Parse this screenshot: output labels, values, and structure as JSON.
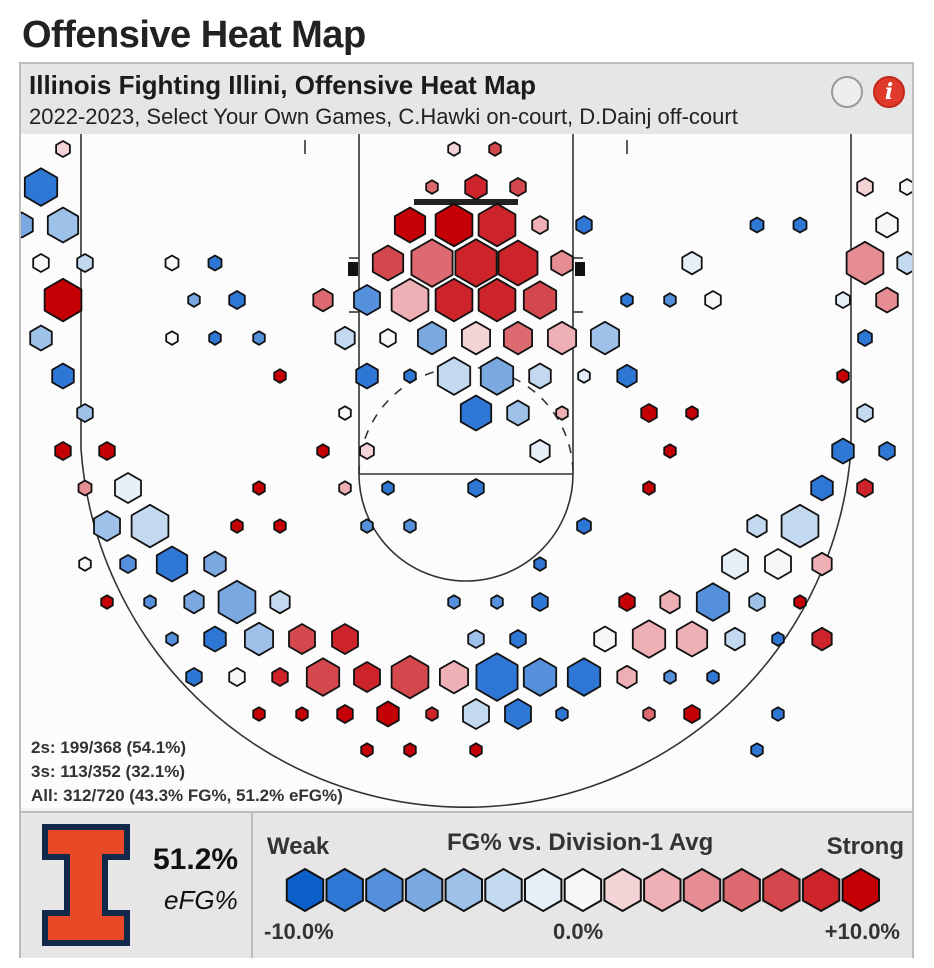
{
  "page_title": "Offensive Heat Map",
  "panel": {
    "title": "Illinois Fighting Illini, Offensive Heat Map",
    "subtitle": "2022-2023, Select Your Own Games, C.Hawki on-court, D.Dainj off-court"
  },
  "stats": {
    "twos": "2s: 199/368 (54.1%)",
    "threes": "3s: 113/352 (32.1%)",
    "all": "All: 312/720 (43.3% FG%, 51.2% eFG%)"
  },
  "summary": {
    "efg_value": "51.2%",
    "efg_label": "eFG%"
  },
  "legend": {
    "weak": "Weak",
    "strong": "Strong",
    "title": "FG% vs. Division-1 Avg",
    "min": "-10.0%",
    "mid": "0.0%",
    "max": "+10.0%",
    "colors": [
      "#0a5fc9",
      "#2f77d4",
      "#5490db",
      "#7aa9e2",
      "#9ec1e9",
      "#c3d9f0",
      "#e6eef8",
      "#f7f7f7",
      "#f3d3d6",
      "#eeb0b5",
      "#e58d93",
      "#dc6a70",
      "#d4474d",
      "#cc242a",
      "#c40006"
    ]
  },
  "chart_data": {
    "type": "heatmap",
    "title": "Illinois Fighting Illini, Offensive Heat Map",
    "value_meaning": "FG% vs. Division-1 Avg, color range -10.0% to +10.0%; hexagon size = shot volume",
    "rows": [
      {
        "y": 147,
        "cells": [
          {
            "x": 63,
            "s": 0.32,
            "c": 8
          },
          {
            "x": 454,
            "s": 0.27,
            "c": 8
          },
          {
            "x": 495,
            "s": 0.27,
            "c": 12
          }
        ]
      },
      {
        "y": 185,
        "cells": [
          {
            "x": 41,
            "s": 0.75,
            "c": 1
          },
          {
            "x": 432,
            "s": 0.27,
            "c": 11
          },
          {
            "x": 476,
            "s": 0.5,
            "c": 13
          },
          {
            "x": 518,
            "s": 0.36,
            "c": 12
          },
          {
            "x": 865,
            "s": 0.36,
            "c": 8
          },
          {
            "x": 907,
            "s": 0.32,
            "c": 7
          }
        ]
      },
      {
        "y": 223,
        "cells": [
          {
            "x": 22,
            "s": 0.5,
            "c": 3
          },
          {
            "x": 63,
            "s": 0.7,
            "c": 4
          },
          {
            "x": 410,
            "s": 0.7,
            "c": 14
          },
          {
            "x": 454,
            "s": 0.85,
            "c": 14
          },
          {
            "x": 497,
            "s": 0.85,
            "c": 13
          },
          {
            "x": 540,
            "s": 0.36,
            "c": 9
          },
          {
            "x": 584,
            "s": 0.36,
            "c": 1
          },
          {
            "x": 757,
            "s": 0.3,
            "c": 1
          },
          {
            "x": 800,
            "s": 0.3,
            "c": 1
          },
          {
            "x": 887,
            "s": 0.5,
            "c": 7
          }
        ]
      },
      {
        "y": 261,
        "cells": [
          {
            "x": 41,
            "s": 0.36,
            "c": 7
          },
          {
            "x": 85,
            "s": 0.36,
            "c": 5
          },
          {
            "x": 172,
            "s": 0.3,
            "c": 7
          },
          {
            "x": 215,
            "s": 0.3,
            "c": 1
          },
          {
            "x": 388,
            "s": 0.7,
            "c": 12
          },
          {
            "x": 432,
            "s": 0.95,
            "c": 11
          },
          {
            "x": 476,
            "s": 0.95,
            "c": 13
          },
          {
            "x": 518,
            "s": 0.9,
            "c": 13
          },
          {
            "x": 562,
            "s": 0.5,
            "c": 10
          },
          {
            "x": 692,
            "s": 0.45,
            "c": 6
          },
          {
            "x": 865,
            "s": 0.85,
            "c": 10
          },
          {
            "x": 907,
            "s": 0.45,
            "c": 5
          }
        ]
      },
      {
        "y": 298,
        "cells": [
          {
            "x": 63,
            "s": 0.85,
            "c": 14
          },
          {
            "x": 194,
            "s": 0.27,
            "c": 3
          },
          {
            "x": 237,
            "s": 0.36,
            "c": 1
          },
          {
            "x": 323,
            "s": 0.45,
            "c": 11
          },
          {
            "x": 367,
            "s": 0.6,
            "c": 2
          },
          {
            "x": 410,
            "s": 0.85,
            "c": 9
          },
          {
            "x": 454,
            "s": 0.85,
            "c": 13
          },
          {
            "x": 497,
            "s": 0.85,
            "c": 13
          },
          {
            "x": 540,
            "s": 0.75,
            "c": 12
          },
          {
            "x": 627,
            "s": 0.27,
            "c": 1
          },
          {
            "x": 670,
            "s": 0.27,
            "c": 2
          },
          {
            "x": 713,
            "s": 0.36,
            "c": 7
          },
          {
            "x": 843,
            "s": 0.32,
            "c": 6
          },
          {
            "x": 887,
            "s": 0.5,
            "c": 10
          }
        ]
      },
      {
        "y": 336,
        "cells": [
          {
            "x": 41,
            "s": 0.5,
            "c": 4
          },
          {
            "x": 172,
            "s": 0.27,
            "c": 7
          },
          {
            "x": 215,
            "s": 0.27,
            "c": 1
          },
          {
            "x": 259,
            "s": 0.27,
            "c": 2
          },
          {
            "x": 345,
            "s": 0.45,
            "c": 5
          },
          {
            "x": 388,
            "s": 0.36,
            "c": 7
          },
          {
            "x": 432,
            "s": 0.65,
            "c": 3
          },
          {
            "x": 476,
            "s": 0.65,
            "c": 8
          },
          {
            "x": 518,
            "s": 0.65,
            "c": 11
          },
          {
            "x": 562,
            "s": 0.65,
            "c": 9
          },
          {
            "x": 605,
            "s": 0.65,
            "c": 4
          },
          {
            "x": 865,
            "s": 0.32,
            "c": 1
          }
        ]
      },
      {
        "y": 374,
        "cells": [
          {
            "x": 63,
            "s": 0.5,
            "c": 1
          },
          {
            "x": 280,
            "s": 0.27,
            "c": 14
          },
          {
            "x": 367,
            "s": 0.5,
            "c": 1
          },
          {
            "x": 410,
            "s": 0.27,
            "c": 1
          },
          {
            "x": 454,
            "s": 0.75,
            "c": 5
          },
          {
            "x": 497,
            "s": 0.75,
            "c": 3
          },
          {
            "x": 540,
            "s": 0.5,
            "c": 5
          },
          {
            "x": 584,
            "s": 0.27,
            "c": 6
          },
          {
            "x": 627,
            "s": 0.45,
            "c": 1
          },
          {
            "x": 843,
            "s": 0.27,
            "c": 14
          }
        ]
      },
      {
        "y": 411,
        "cells": [
          {
            "x": 85,
            "s": 0.36,
            "c": 4
          },
          {
            "x": 345,
            "s": 0.27,
            "c": 7
          },
          {
            "x": 476,
            "s": 0.7,
            "c": 1
          },
          {
            "x": 518,
            "s": 0.5,
            "c": 4
          },
          {
            "x": 562,
            "s": 0.27,
            "c": 9
          },
          {
            "x": 649,
            "s": 0.36,
            "c": 14
          },
          {
            "x": 692,
            "s": 0.27,
            "c": 14
          },
          {
            "x": 865,
            "s": 0.36,
            "c": 5
          }
        ]
      },
      {
        "y": 449,
        "cells": [
          {
            "x": 63,
            "s": 0.36,
            "c": 14
          },
          {
            "x": 107,
            "s": 0.36,
            "c": 14
          },
          {
            "x": 323,
            "s": 0.27,
            "c": 14
          },
          {
            "x": 367,
            "s": 0.32,
            "c": 8
          },
          {
            "x": 540,
            "s": 0.45,
            "c": 6
          },
          {
            "x": 670,
            "s": 0.27,
            "c": 14
          },
          {
            "x": 843,
            "s": 0.5,
            "c": 1
          },
          {
            "x": 887,
            "s": 0.36,
            "c": 1
          }
        ]
      },
      {
        "y": 486,
        "cells": [
          {
            "x": 85,
            "s": 0.3,
            "c": 10
          },
          {
            "x": 128,
            "s": 0.6,
            "c": 6
          },
          {
            "x": 259,
            "s": 0.27,
            "c": 14
          },
          {
            "x": 345,
            "s": 0.27,
            "c": 9
          },
          {
            "x": 388,
            "s": 0.27,
            "c": 1
          },
          {
            "x": 476,
            "s": 0.36,
            "c": 1
          },
          {
            "x": 649,
            "s": 0.27,
            "c": 14
          },
          {
            "x": 822,
            "s": 0.5,
            "c": 1
          },
          {
            "x": 865,
            "s": 0.36,
            "c": 13
          }
        ]
      },
      {
        "y": 524,
        "cells": [
          {
            "x": 107,
            "s": 0.6,
            "c": 4
          },
          {
            "x": 150,
            "s": 0.85,
            "c": 5
          },
          {
            "x": 237,
            "s": 0.27,
            "c": 14
          },
          {
            "x": 280,
            "s": 0.27,
            "c": 14
          },
          {
            "x": 367,
            "s": 0.27,
            "c": 2
          },
          {
            "x": 410,
            "s": 0.27,
            "c": 2
          },
          {
            "x": 584,
            "s": 0.32,
            "c": 1
          },
          {
            "x": 757,
            "s": 0.45,
            "c": 5
          },
          {
            "x": 800,
            "s": 0.85,
            "c": 5
          }
        ]
      },
      {
        "y": 562,
        "cells": [
          {
            "x": 85,
            "s": 0.27,
            "c": 7
          },
          {
            "x": 128,
            "s": 0.36,
            "c": 2
          },
          {
            "x": 172,
            "s": 0.7,
            "c": 1
          },
          {
            "x": 215,
            "s": 0.5,
            "c": 3
          },
          {
            "x": 540,
            "s": 0.27,
            "c": 1
          },
          {
            "x": 735,
            "s": 0.6,
            "c": 6
          },
          {
            "x": 778,
            "s": 0.6,
            "c": 7
          },
          {
            "x": 822,
            "s": 0.45,
            "c": 9
          }
        ]
      },
      {
        "y": 600,
        "cells": [
          {
            "x": 107,
            "s": 0.27,
            "c": 14
          },
          {
            "x": 150,
            "s": 0.27,
            "c": 2
          },
          {
            "x": 194,
            "s": 0.45,
            "c": 3
          },
          {
            "x": 237,
            "s": 0.85,
            "c": 3
          },
          {
            "x": 280,
            "s": 0.45,
            "c": 5
          },
          {
            "x": 454,
            "s": 0.27,
            "c": 2
          },
          {
            "x": 497,
            "s": 0.27,
            "c": 2
          },
          {
            "x": 540,
            "s": 0.36,
            "c": 1
          },
          {
            "x": 627,
            "s": 0.36,
            "c": 14
          },
          {
            "x": 670,
            "s": 0.45,
            "c": 9
          },
          {
            "x": 713,
            "s": 0.75,
            "c": 2
          },
          {
            "x": 757,
            "s": 0.36,
            "c": 4
          },
          {
            "x": 800,
            "s": 0.27,
            "c": 14
          }
        ]
      },
      {
        "y": 637,
        "cells": [
          {
            "x": 172,
            "s": 0.27,
            "c": 2
          },
          {
            "x": 215,
            "s": 0.5,
            "c": 1
          },
          {
            "x": 259,
            "s": 0.65,
            "c": 4
          },
          {
            "x": 302,
            "s": 0.6,
            "c": 12
          },
          {
            "x": 345,
            "s": 0.6,
            "c": 13
          },
          {
            "x": 476,
            "s": 0.36,
            "c": 4
          },
          {
            "x": 518,
            "s": 0.36,
            "c": 1
          },
          {
            "x": 605,
            "s": 0.5,
            "c": 7
          },
          {
            "x": 649,
            "s": 0.75,
            "c": 9
          },
          {
            "x": 692,
            "s": 0.7,
            "c": 9
          },
          {
            "x": 735,
            "s": 0.45,
            "c": 5
          },
          {
            "x": 778,
            "s": 0.27,
            "c": 1
          },
          {
            "x": 822,
            "s": 0.45,
            "c": 13
          }
        ]
      },
      {
        "y": 675,
        "cells": [
          {
            "x": 194,
            "s": 0.36,
            "c": 1
          },
          {
            "x": 237,
            "s": 0.36,
            "c": 7
          },
          {
            "x": 280,
            "s": 0.36,
            "c": 13
          },
          {
            "x": 323,
            "s": 0.75,
            "c": 12
          },
          {
            "x": 367,
            "s": 0.6,
            "c": 13
          },
          {
            "x": 410,
            "s": 0.85,
            "c": 12
          },
          {
            "x": 454,
            "s": 0.65,
            "c": 9
          },
          {
            "x": 497,
            "s": 0.95,
            "c": 1
          },
          {
            "x": 540,
            "s": 0.75,
            "c": 2
          },
          {
            "x": 584,
            "s": 0.75,
            "c": 1
          },
          {
            "x": 627,
            "s": 0.45,
            "c": 9
          },
          {
            "x": 670,
            "s": 0.27,
            "c": 2
          },
          {
            "x": 713,
            "s": 0.27,
            "c": 1
          }
        ]
      },
      {
        "y": 712,
        "cells": [
          {
            "x": 259,
            "s": 0.27,
            "c": 14
          },
          {
            "x": 302,
            "s": 0.27,
            "c": 14
          },
          {
            "x": 345,
            "s": 0.36,
            "c": 14
          },
          {
            "x": 388,
            "s": 0.5,
            "c": 14
          },
          {
            "x": 432,
            "s": 0.27,
            "c": 13
          },
          {
            "x": 476,
            "s": 0.6,
            "c": 5
          },
          {
            "x": 518,
            "s": 0.6,
            "c": 1
          },
          {
            "x": 562,
            "s": 0.27,
            "c": 1
          },
          {
            "x": 649,
            "s": 0.27,
            "c": 11
          },
          {
            "x": 692,
            "s": 0.36,
            "c": 14
          },
          {
            "x": 778,
            "s": 0.27,
            "c": 1
          }
        ]
      },
      {
        "y": 748,
        "cells": [
          {
            "x": 367,
            "s": 0.27,
            "c": 14
          },
          {
            "x": 410,
            "s": 0.27,
            "c": 14
          },
          {
            "x": 476,
            "s": 0.27,
            "c": 14
          },
          {
            "x": 757,
            "s": 0.27,
            "c": 1
          }
        ]
      }
    ]
  }
}
